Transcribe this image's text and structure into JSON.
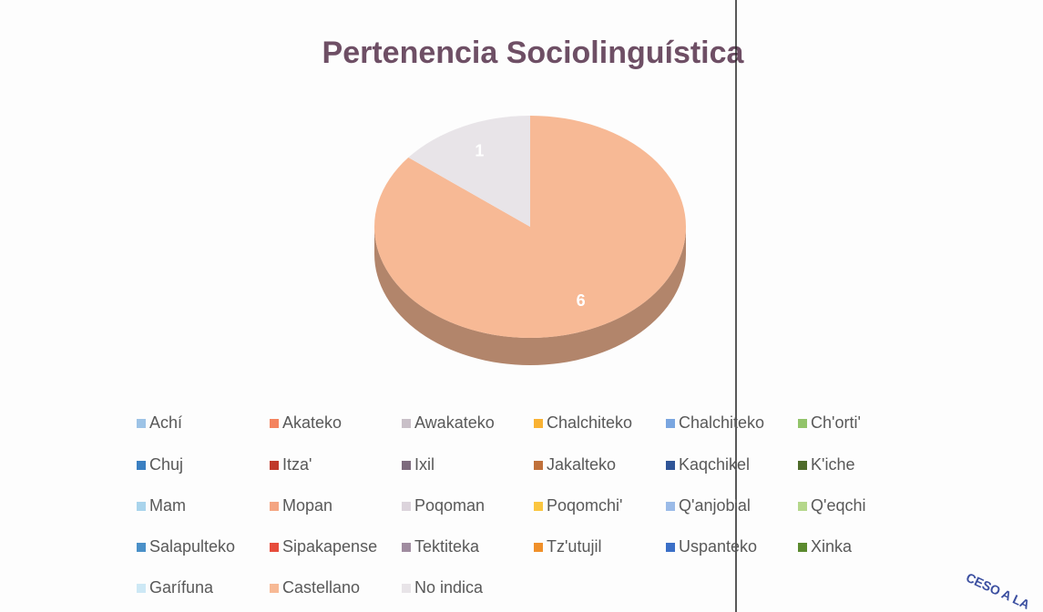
{
  "chart_data": {
    "type": "pie",
    "title": "Pertenencia Sociolinguística",
    "categories": [
      "Achí",
      "Akateko",
      "Awakateko",
      "Chalchiteko",
      "Chalchiteko",
      "Ch'orti'",
      "Chuj",
      "Itza'",
      "Ixil",
      "Jakalteko",
      "Kaqchikel",
      "K'iche",
      "Mam",
      "Mopan",
      "Poqoman",
      "Poqomchi'",
      "Q'anjob'al",
      "Q'eqchi",
      "Salapulteko",
      "Sipakapense",
      "Tektiteka",
      "Tz'utujil",
      "Uspanteko",
      "Xinka",
      "Garífuna",
      "Castellano",
      "No indica"
    ],
    "values": [
      0,
      0,
      0,
      0,
      0,
      0,
      0,
      0,
      0,
      0,
      0,
      0,
      0,
      0,
      0,
      0,
      0,
      0,
      0,
      0,
      0,
      0,
      0,
      0,
      0,
      6,
      1
    ],
    "colors": [
      "#9dc3e6",
      "#f4845f",
      "#c9c0c8",
      "#f9b233",
      "#7aa6e0",
      "#92c46a",
      "#3a7fc1",
      "#c0392b",
      "#7d6b7d",
      "#c0703a",
      "#2f5597",
      "#4e6b2a",
      "#a9d4ec",
      "#f4a582",
      "#dcd4dc",
      "#fbc640",
      "#9bbbe8",
      "#b5d78b",
      "#4a90c8",
      "#e74c3c",
      "#a08ca0",
      "#f0902a",
      "#3b6fc7",
      "#5b8a2e",
      "#cde8f5",
      "#f7b995",
      "#e8e4e8"
    ],
    "legend": "bottom"
  },
  "stamp_text": "CESO A LA"
}
